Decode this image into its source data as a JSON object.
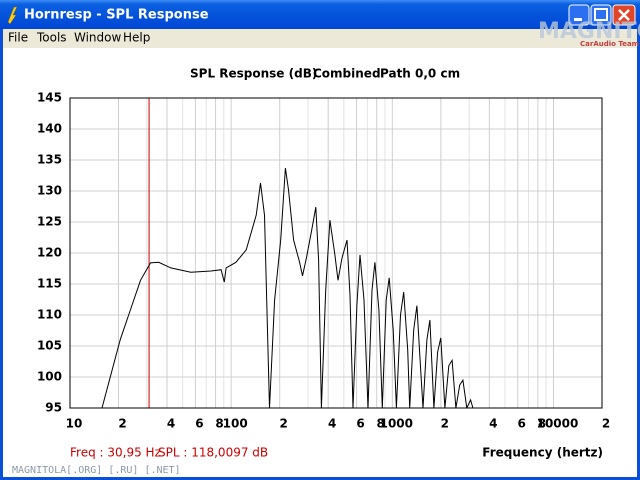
{
  "window": {
    "title": "Hornresp - SPL Response"
  },
  "menu": [
    "File",
    "Tools",
    "Window",
    "Help"
  ],
  "logo": {
    "name": "MAGNITOLA",
    "tagline": "CarAudio Team"
  },
  "chart_data": {
    "type": "line",
    "title": "SPL Response (dB)",
    "subtitle": "Combined",
    "path_label": "Path 0,0 cm",
    "x_label": "Frequency (hertz)",
    "log_x": true,
    "grid": true,
    "xlim": [
      10,
      20000
    ],
    "ylim": [
      95,
      145
    ],
    "xticks": [
      10,
      {
        "value": 20,
        "label": "2"
      },
      {
        "value": 40,
        "label": "4"
      },
      {
        "value": 60,
        "label": "6"
      },
      {
        "value": 80,
        "label": "8"
      },
      100,
      {
        "value": 200,
        "label": "2"
      },
      {
        "value": 400,
        "label": "4"
      },
      {
        "value": 600,
        "label": "6"
      },
      {
        "value": 800,
        "label": "8"
      },
      1000,
      {
        "value": 2000,
        "label": "2"
      },
      {
        "value": 4000,
        "label": "4"
      },
      {
        "value": 6000,
        "label": "6"
      },
      {
        "value": 8000,
        "label": "8"
      },
      10000,
      {
        "value": 20000,
        "label": "2"
      }
    ],
    "minor_xticks": [
      30,
      50,
      70,
      90,
      300,
      500,
      700,
      900,
      3000,
      5000,
      7000,
      9000
    ],
    "yticks": [
      95,
      100,
      105,
      110,
      115,
      120,
      125,
      130,
      135,
      140,
      145
    ],
    "cursor_x": 30.95,
    "cursor_color": "#cc0000",
    "status_freq": "Freq : 30,95 Hz",
    "status_spl": "SPL : 118,0097 dB",
    "x": [
      15.8,
      20.5,
      27.4,
      31.6,
      35.5,
      42.2,
      56.2,
      75,
      86.6,
      90.6,
      93,
      107,
      124,
      143,
      152,
      161,
      173,
      186,
      203,
      217,
      227,
      244,
      266,
      277,
      293,
      316,
      335,
      349,
      363,
      386,
      410,
      440,
      460,
      487,
      523,
      546,
      570,
      603,
      630,
      667,
      706,
      748,
      780,
      826,
      866,
      916,
      957,
      1013,
      1060,
      1124,
      1176,
      1245,
      1282,
      1358,
      1420,
      1500,
      1550,
      1640,
      1710,
      1810,
      1910,
      2000,
      2120,
      2240,
      2350,
      2480,
      2620,
      2740,
      2900,
      3060,
      3160
    ],
    "series": [
      {
        "name": "SPL",
        "color": "#000000",
        "values": [
          95,
          106,
          115.6,
          118.4,
          118.5,
          117.6,
          116.9,
          117.1,
          117.3,
          115.3,
          117.6,
          118.5,
          120.5,
          126.1,
          131.3,
          126.1,
          95,
          112.4,
          122.1,
          133.7,
          130.2,
          122.1,
          118.5,
          116.3,
          119.2,
          123.7,
          127.4,
          118.9,
          95,
          114,
          125.3,
          119.7,
          115.6,
          119.2,
          122.1,
          113.2,
          95,
          111.6,
          119.7,
          112.4,
          95,
          114,
          118.5,
          110.8,
          95,
          112.4,
          116,
          107.6,
          95,
          110,
          113.7,
          104.4,
          95,
          107.6,
          111.5,
          101.1,
          95,
          106,
          109.2,
          95,
          104,
          106.3,
          95,
          101.8,
          102.7,
          95,
          98.7,
          99.5,
          95,
          96.3,
          95
        ]
      }
    ]
  },
  "footer": "MAGNITOLA[.ORG] [.RU] [.NET]"
}
